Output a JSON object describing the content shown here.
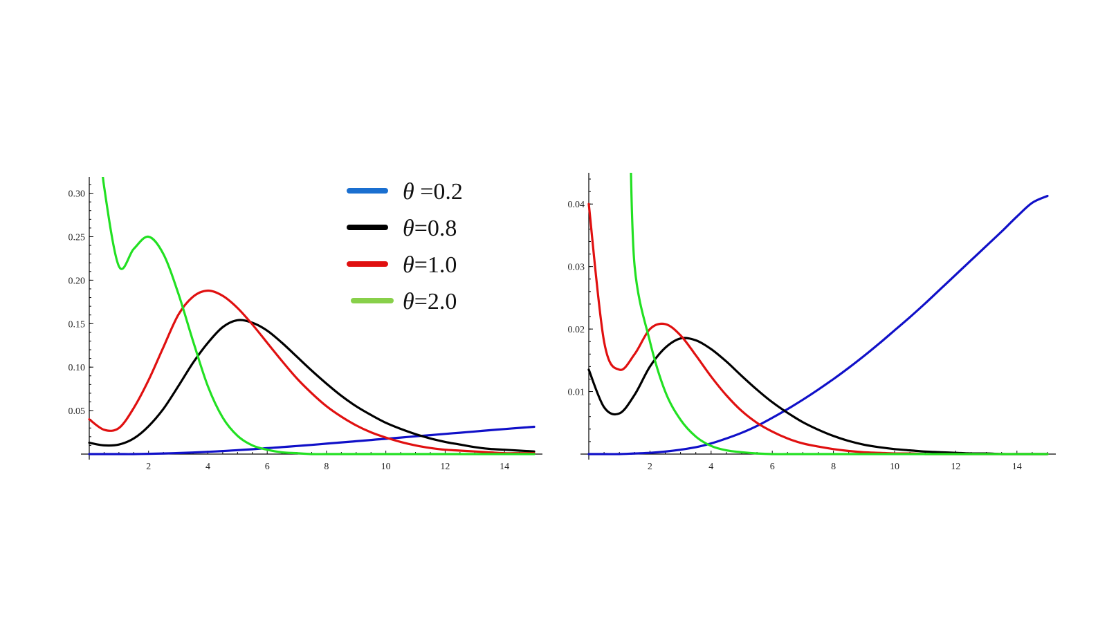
{
  "chart_data": [
    {
      "type": "line",
      "xlim": [
        0,
        15
      ],
      "ylim": [
        0,
        0.31
      ],
      "grid": false,
      "legend": "top-right",
      "xticks": [
        2,
        4,
        6,
        8,
        10,
        12,
        14
      ],
      "xtick_labels": [
        "2",
        "4",
        "6",
        "8",
        "10",
        "12",
        "14"
      ],
      "yticks": [
        0.05,
        0.1,
        0.15,
        0.2,
        0.25,
        0.3
      ],
      "ytick_labels": [
        "0.05",
        "0.10",
        "0.15",
        "0.20",
        "0.25",
        "0.30"
      ],
      "x": [
        0,
        0.5,
        1,
        1.5,
        2,
        2.5,
        3,
        3.5,
        4,
        4.5,
        5,
        5.5,
        6,
        6.5,
        7,
        7.5,
        8,
        8.5,
        9,
        9.5,
        10,
        10.5,
        11,
        11.5,
        12,
        12.5,
        13,
        13.5,
        14,
        14.5,
        15
      ],
      "series": [
        {
          "name": "θ =0.2",
          "color": "#1010c8",
          "values": [
            0,
            0,
            0,
            0,
            0.0003,
            0.0007,
            0.0012,
            0.0018,
            0.0026,
            0.0035,
            0.0045,
            0.0056,
            0.0068,
            0.008,
            0.0093,
            0.0106,
            0.012,
            0.0134,
            0.0148,
            0.0162,
            0.0176,
            0.019,
            0.0204,
            0.0218,
            0.0232,
            0.0246,
            0.026,
            0.0274,
            0.0288,
            0.0301,
            0.0314
          ]
        },
        {
          "name": "θ=0.8",
          "color": "#000000",
          "values": [
            0.013,
            0.01,
            0.011,
            0.018,
            0.032,
            0.052,
            0.078,
            0.105,
            0.128,
            0.146,
            0.154,
            0.151,
            0.142,
            0.128,
            0.112,
            0.096,
            0.081,
            0.067,
            0.055,
            0.045,
            0.036,
            0.029,
            0.023,
            0.018,
            0.014,
            0.011,
            0.008,
            0.006,
            0.005,
            0.004,
            0.003
          ]
        },
        {
          "name": "θ=1.0",
          "color": "#e01010",
          "values": [
            0.04,
            0.028,
            0.03,
            0.053,
            0.085,
            0.123,
            0.16,
            0.181,
            0.188,
            0.182,
            0.168,
            0.149,
            0.128,
            0.107,
            0.087,
            0.07,
            0.055,
            0.043,
            0.033,
            0.025,
            0.019,
            0.014,
            0.01,
            0.007,
            0.005,
            0.004,
            0.003,
            0.002,
            0.001,
            0.001,
            0.001
          ]
        },
        {
          "name": "θ=2.0",
          "color": "#22e022",
          "values": [
            null,
            0.308,
            0.216,
            0.236,
            0.25,
            0.23,
            0.185,
            0.13,
            0.078,
            0.042,
            0.021,
            0.01,
            0.005,
            0.002,
            0.001,
            0,
            0,
            0,
            0,
            0,
            0,
            0,
            0,
            0,
            0,
            0,
            0,
            0,
            0,
            0,
            0
          ]
        }
      ]
    },
    {
      "type": "line",
      "xlim": [
        0,
        15
      ],
      "ylim": [
        0,
        0.045
      ],
      "grid": false,
      "xticks": [
        2,
        4,
        6,
        8,
        10,
        12,
        14
      ],
      "xtick_labels": [
        "2",
        "4",
        "6",
        "8",
        "10",
        "12",
        "14"
      ],
      "yticks": [
        0.01,
        0.02,
        0.03,
        0.04
      ],
      "ytick_labels": [
        "0.01",
        "0.02",
        "0.03",
        "0.04"
      ],
      "x": [
        0,
        0.5,
        1,
        1.5,
        2,
        2.5,
        3,
        3.5,
        4,
        4.5,
        5,
        5.5,
        6,
        6.5,
        7,
        7.5,
        8,
        8.5,
        9,
        9.5,
        10,
        10.5,
        11,
        11.5,
        12,
        12.5,
        13,
        13.5,
        14,
        14.5,
        15
      ],
      "series": [
        {
          "name": "θ =0.2",
          "color": "#1010c8",
          "values": [
            0,
            0,
            0,
            0.0001,
            0.0002,
            0.0004,
            0.0007,
            0.0011,
            0.0017,
            0.0025,
            0.0034,
            0.0045,
            0.0058,
            0.0072,
            0.0087,
            0.0103,
            0.012,
            0.0138,
            0.0157,
            0.0177,
            0.0198,
            0.0219,
            0.0241,
            0.0264,
            0.0287,
            0.031,
            0.0333,
            0.0356,
            0.038,
            0.0402,
            0.0413
          ]
        },
        {
          "name": "θ=0.8",
          "color": "#000000",
          "values": [
            0.0135,
            0.0075,
            0.0065,
            0.0095,
            0.014,
            0.017,
            0.0185,
            0.0182,
            0.0168,
            0.0148,
            0.0125,
            0.0103,
            0.0083,
            0.0066,
            0.0051,
            0.0039,
            0.0029,
            0.0021,
            0.0015,
            0.0011,
            0.0008,
            0.0006,
            0.0004,
            0.0003,
            0.0002,
            0.0001,
            0.0001,
            0,
            0,
            0,
            0
          ]
        },
        {
          "name": "θ=1.0",
          "color": "#e01010",
          "values": [
            0.04,
            0.018,
            0.0135,
            0.016,
            0.02,
            0.0208,
            0.019,
            0.0158,
            0.0124,
            0.0094,
            0.0069,
            0.005,
            0.0036,
            0.0025,
            0.0017,
            0.0012,
            0.0008,
            0.0005,
            0.0003,
            0.0002,
            0.0001,
            0.0001,
            0,
            0,
            0,
            0,
            0,
            0,
            0,
            0,
            0
          ]
        },
        {
          "name": "θ=2.0",
          "color": "#22e022",
          "values": [
            null,
            null,
            null,
            0.03,
            0.018,
            0.01,
            0.0055,
            0.0028,
            0.0013,
            0.0006,
            0.0003,
            0.0001,
            0,
            0,
            0,
            0,
            0,
            0,
            0,
            0,
            0,
            0,
            0,
            0,
            0,
            0,
            0,
            0,
            0,
            0,
            0
          ]
        }
      ]
    }
  ],
  "legend": {
    "entries": [
      {
        "theta": "θ",
        "text": " =0.2",
        "color": "#1a6fd0"
      },
      {
        "theta": "θ",
        "text": "=0.8",
        "color": "#000000"
      },
      {
        "theta": "θ",
        "text": "=1.0",
        "color": "#e01010"
      },
      {
        "theta": "θ",
        "text": "=2.0",
        "color": "#88d04a"
      }
    ]
  }
}
